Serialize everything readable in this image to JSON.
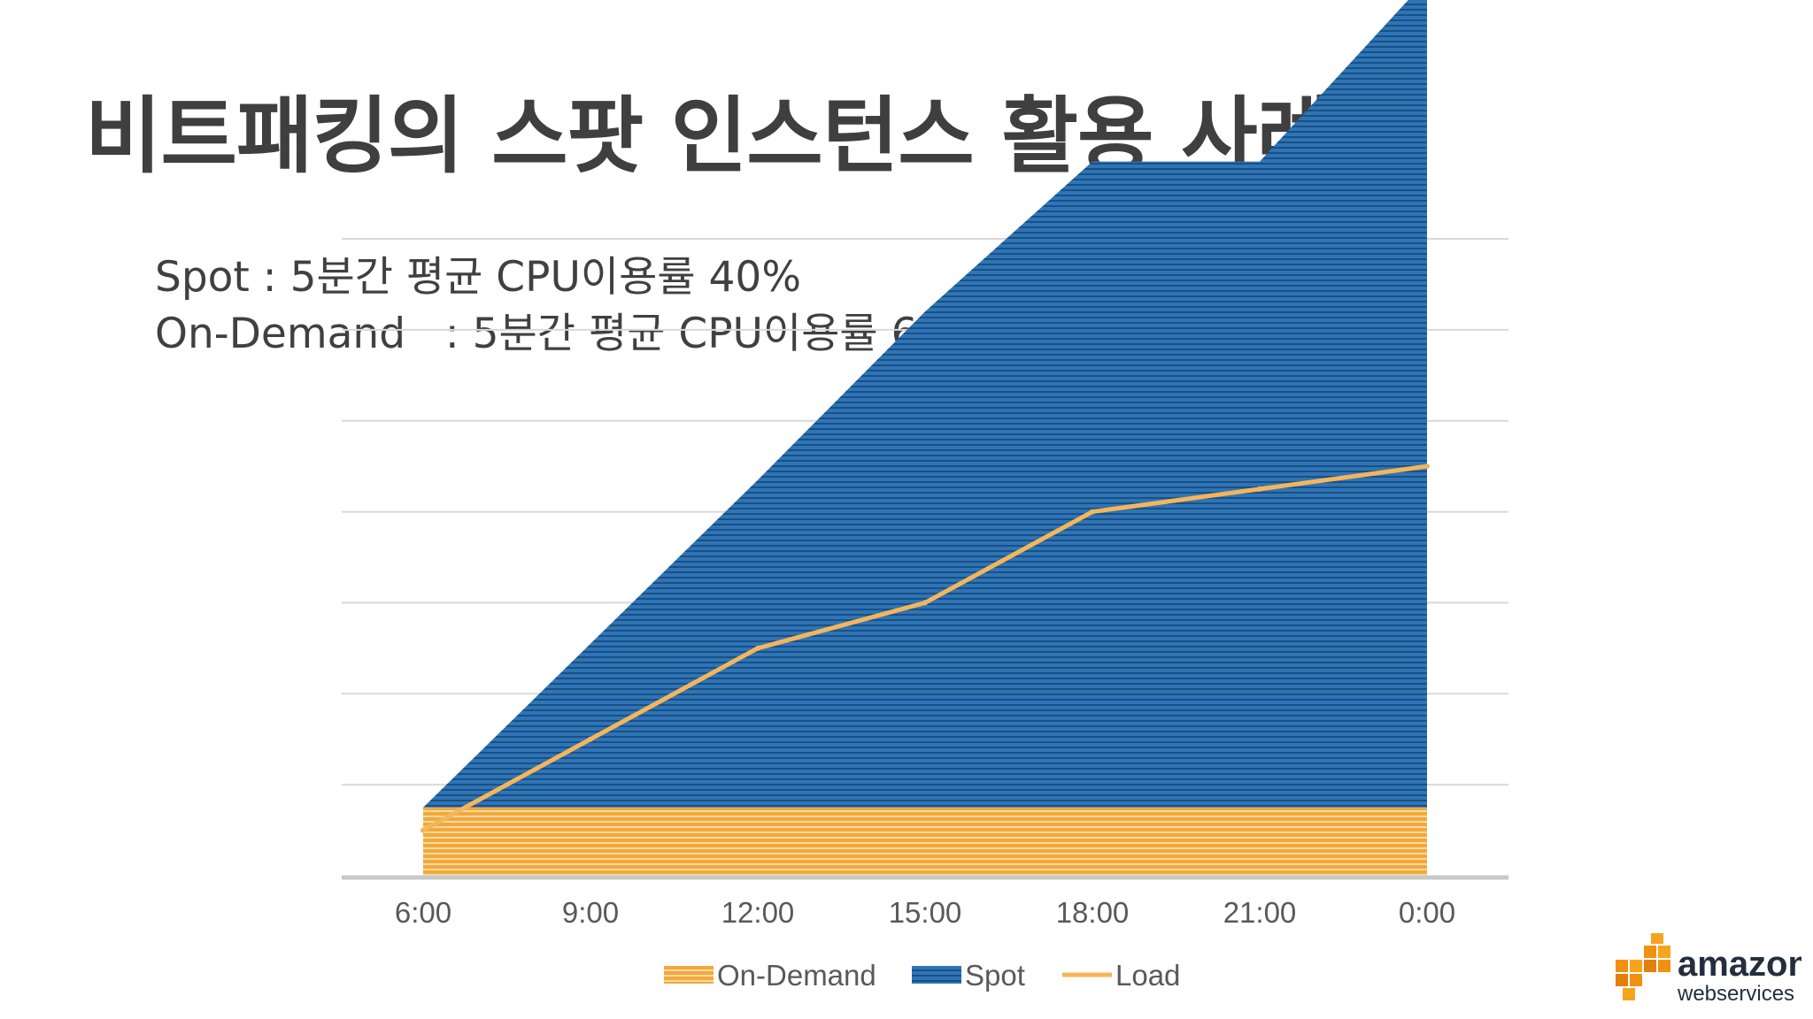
{
  "slide": {
    "title": "비트패킹의 스팟 인스턴스 활용 사례",
    "stats": [
      "Spot : 5분간 평균 CPU이용률 40%",
      "On-Demand   : 5분간 평균 CPU이용률 60%"
    ]
  },
  "logo": {
    "line1": "amazon",
    "line2": "webservices",
    "icon": "aws-cubes-icon"
  },
  "colors": {
    "on_demand": "#f2a83b",
    "spot": "#2e75b6",
    "load": "#f5b55a",
    "grid": "#d9d9d9",
    "axis": "#c8c8c8",
    "tick_text": "#595959"
  },
  "chart_data": {
    "type": "area",
    "categories": [
      "6:00",
      "9:00",
      "12:00",
      "15:00",
      "18:00",
      "21:00",
      "0:00"
    ],
    "ylim": [
      0,
      7
    ],
    "grid": true,
    "legend_position": "bottom",
    "series": [
      {
        "name": "On-Demand",
        "type": "area",
        "stacked": true,
        "values": [
          0.75,
          0.75,
          0.75,
          0.75,
          0.75,
          0.75,
          0.75
        ]
      },
      {
        "name": "Spot",
        "type": "area",
        "stacked": true,
        "values": [
          0,
          1.8,
          3.6,
          5.45,
          7.1,
          7.1,
          9.1
        ]
      },
      {
        "name": "Load",
        "type": "line",
        "values": [
          0.5,
          1.5,
          2.5,
          3.0,
          4.0,
          4.25,
          4.5
        ]
      }
    ]
  }
}
